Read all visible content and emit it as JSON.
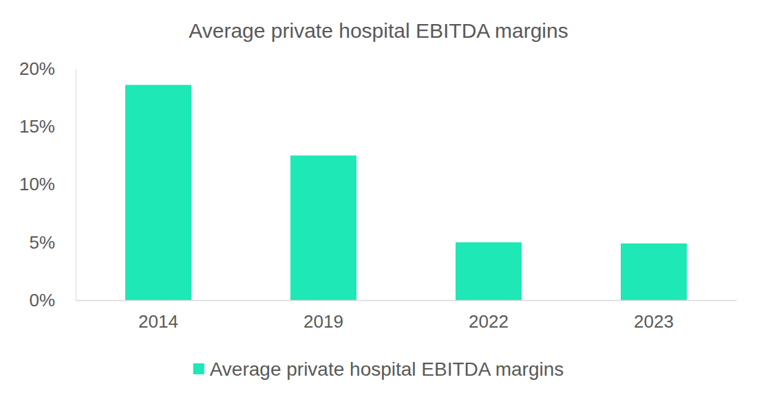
{
  "chart_data": {
    "type": "bar",
    "title": "Average private hospital EBITDA margins",
    "categories": [
      "2014",
      "2019",
      "2022",
      "2023"
    ],
    "series": [
      {
        "name": "Average private hospital EBITDA margins",
        "color": "#1ee8b6",
        "values": [
          18.6,
          12.5,
          5.0,
          4.9
        ]
      }
    ],
    "ylim": [
      0,
      20
    ],
    "yticks": [
      {
        "value": 0,
        "label": "0%"
      },
      {
        "value": 5,
        "label": "5%"
      },
      {
        "value": 10,
        "label": "10%"
      },
      {
        "value": 15,
        "label": "15%"
      },
      {
        "value": 20,
        "label": "20%"
      }
    ],
    "grid": false,
    "legend": "bottom"
  }
}
